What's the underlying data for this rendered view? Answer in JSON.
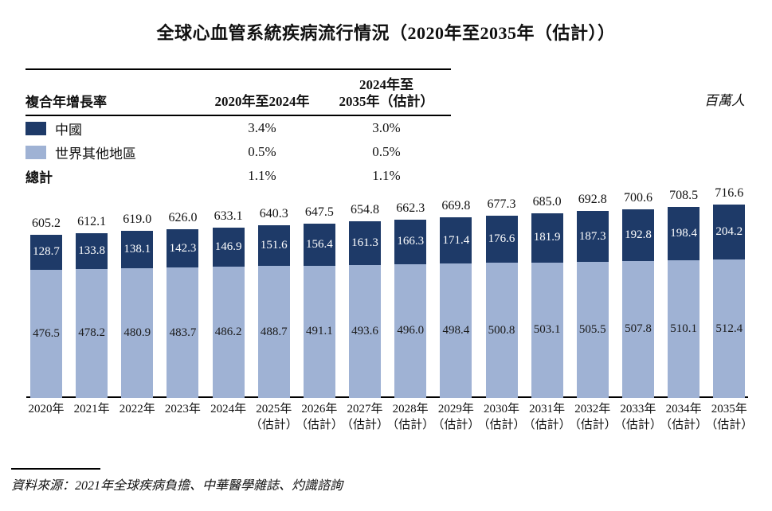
{
  "title": "全球心血管系統疾病流行情況（2020年至2035年（估計））",
  "unit_label": "百萬人",
  "colors": {
    "china": "#1E3A68",
    "rest_of_world": "#9FB2D4",
    "axis": "#000000"
  },
  "cagr_table": {
    "col1_header": "複合年增長率",
    "col2_header": "2020年至2024年",
    "col3_header_line1": "2024年至",
    "col3_header_line2": "2035年（估計）",
    "rows": [
      {
        "label": "中國",
        "cagr_2020_2024": "3.4%",
        "cagr_2024_2035": "3.0%"
      },
      {
        "label": "世界其他地區",
        "cagr_2020_2024": "0.5%",
        "cagr_2024_2035": "0.5%"
      },
      {
        "label": "總計",
        "cagr_2020_2024": "1.1%",
        "cagr_2024_2035": "1.1%"
      }
    ]
  },
  "chart_data": {
    "type": "bar",
    "stacked": true,
    "title": "全球心血管系統疾病流行情況（2020年至2035年（估計））",
    "unit": "百萬人",
    "categories": [
      "2020年",
      "2021年",
      "2022年",
      "2023年",
      "2024年",
      "2025年",
      "2026年",
      "2027年",
      "2028年",
      "2029年",
      "2030年",
      "2031年",
      "2032年",
      "2033年",
      "2034年",
      "2035年"
    ],
    "estimate_suffix": "（估計）",
    "estimate_from_index": 5,
    "series": [
      {
        "name": "中國",
        "color": "#1E3A68",
        "values": [
          128.7,
          133.8,
          138.1,
          142.3,
          146.9,
          151.6,
          156.4,
          161.3,
          166.3,
          171.4,
          176.6,
          181.9,
          187.3,
          192.8,
          198.4,
          204.2
        ]
      },
      {
        "name": "世界其他地區",
        "color": "#9FB2D4",
        "values": [
          476.5,
          478.2,
          480.9,
          483.7,
          486.2,
          488.7,
          491.1,
          493.6,
          496.0,
          498.4,
          500.8,
          503.1,
          505.5,
          507.8,
          510.1,
          512.4
        ]
      }
    ],
    "totals": [
      605.2,
      612.1,
      619.0,
      626.0,
      633.1,
      640.3,
      647.5,
      654.8,
      662.3,
      669.8,
      677.3,
      685.0,
      692.8,
      700.6,
      708.5,
      716.6
    ],
    "ylim": [
      0,
      740
    ],
    "grid": false,
    "legend_position": "top-left-table"
  },
  "source": "資料來源：2021年全球疾病負擔、中華醫學雜誌、灼識諮詢"
}
